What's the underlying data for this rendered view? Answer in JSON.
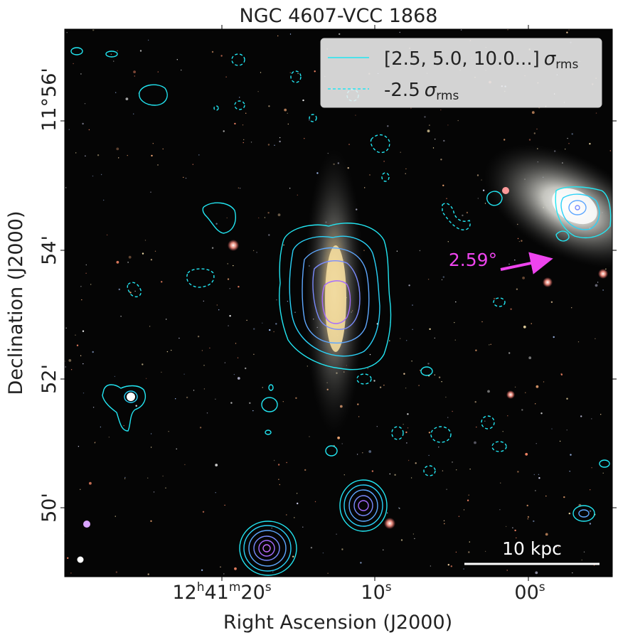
{
  "chart_data": {
    "type": "image-contour",
    "title": "NGC 4607-VCC 1868",
    "xlabel": "Right Ascension (J2000)",
    "ylabel": "Declination (J2000)",
    "x_ticks": [
      {
        "h": "12",
        "m": "41",
        "s": "20",
        "parts": [
          "12",
          "h",
          "41",
          "m",
          "20",
          "s"
        ]
      },
      {
        "s": "10",
        "parts": [
          "10",
          "s"
        ]
      },
      {
        "s": "00",
        "parts": [
          "00",
          "s"
        ]
      }
    ],
    "y_ticks": [
      {
        "label": "11°56'",
        "dec_arcmin": 56
      },
      {
        "label": "54'",
        "dec_arcmin": 54
      },
      {
        "label": "52'",
        "dec_arcmin": 52
      },
      {
        "label": "50'",
        "dec_arcmin": 50
      }
    ],
    "legend": {
      "placement": "top-right",
      "entries": [
        {
          "label": "[2.5, 5.0, 10.0...]",
          "sigma": "σ",
          "sub": "rms",
          "style": "solid",
          "color": "#22e6f2"
        },
        {
          "label": "-2.5",
          "sigma": "σ",
          "sub": "rms",
          "style": "dashed",
          "color": "#22e6f2"
        }
      ]
    },
    "contour_levels_sigma": [
      2.5,
      5.0,
      10.0,
      20.0,
      40.0
    ],
    "negative_level_sigma": -2.5,
    "annotations": {
      "angle_label": "2.59°",
      "angle_color": "#ee44ee",
      "scale_bar_label": "10 kpc"
    },
    "colors": {
      "contour_cyan": "#22e6f2",
      "contour_blue": "#5fa8ff",
      "contour_purple": "#9a6cff",
      "contour_magenta": "#c46cff",
      "background": "#050505"
    }
  }
}
